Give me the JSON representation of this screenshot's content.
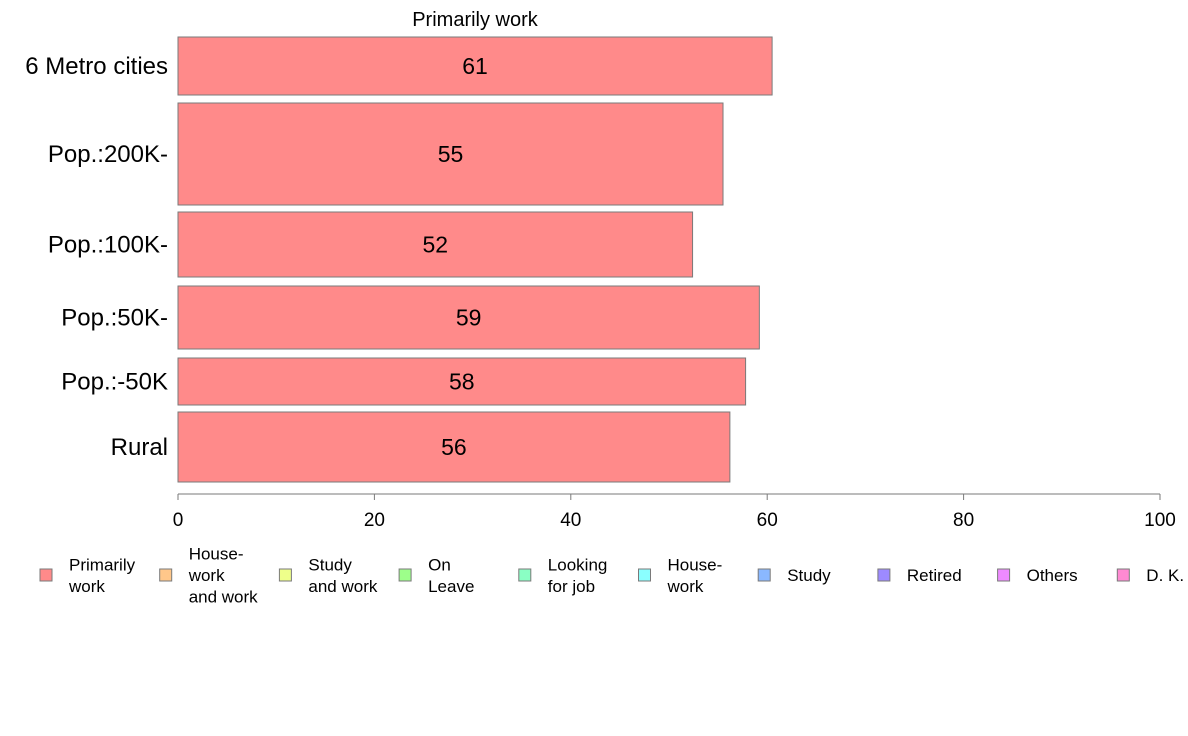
{
  "chart_data": {
    "type": "bar",
    "orientation": "horizontal",
    "title": "Primarily work",
    "categories": [
      "6 Metro cities",
      "Pop.:200K-",
      "Pop.:100K-",
      "Pop.:50K-",
      "Pop.:-50K",
      "Rural"
    ],
    "series": [
      {
        "name": "Primarily\nwork",
        "values": [
          60.5,
          55.5,
          52.4,
          59.2,
          57.8,
          56.2
        ],
        "labels": [
          "61",
          "55",
          "52",
          "59",
          "58",
          "56"
        ],
        "color": "#ff8a8a"
      }
    ],
    "xlim": [
      0,
      100
    ],
    "xticks": [
      0,
      20,
      40,
      60,
      80,
      100
    ],
    "xlabel": "",
    "ylabel": "",
    "grid": false,
    "legend": {
      "placement": "bottom",
      "entries": [
        {
          "label": "Primarily\nwork",
          "color": "#ff8a8a"
        },
        {
          "label": "House-\nwork\nand work",
          "color": "#ffc78a"
        },
        {
          "label": "Study\nand work",
          "color": "#eeff8a"
        },
        {
          "label": "On\nLeave",
          "color": "#9dff8a"
        },
        {
          "label": "Looking\nfor job",
          "color": "#8affc4"
        },
        {
          "label": "House-\nwork",
          "color": "#8affff"
        },
        {
          "label": "Study",
          "color": "#8ab8ff"
        },
        {
          "label": "Retired",
          "color": "#9d8aff"
        },
        {
          "label": "Others",
          "color": "#ee8aff"
        },
        {
          "label": "D. K.",
          "color": "#ff8ad2"
        }
      ]
    }
  }
}
